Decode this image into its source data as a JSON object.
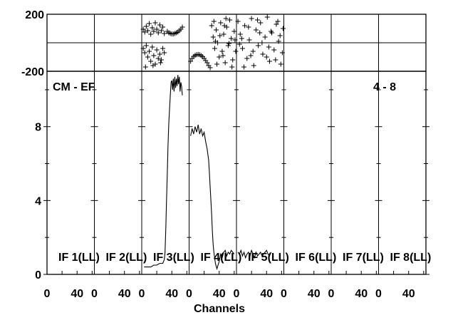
{
  "chart_data": {
    "type": "line",
    "title": "",
    "annotation_left": "CM - EF",
    "annotation_right": "4 - 8",
    "xlabel": "Channels",
    "phase_panel": {
      "ylim": [
        -200,
        200
      ],
      "ytick_labels": [
        "200",
        "-200"
      ]
    },
    "amplitude_panel": {
      "ylim": [
        0,
        11
      ],
      "ytick_labels": [
        "0",
        "4",
        "8"
      ]
    },
    "x_range_per_if": [
      0,
      63
    ],
    "xtick_labels": [
      "0",
      "40"
    ],
    "ifs": [
      {
        "label": "IF 1(LL)",
        "amplitude": [],
        "phase": []
      },
      {
        "label": "IF 2(LL)",
        "amplitude": [],
        "phase": []
      },
      {
        "label": "IF 3(LL)",
        "amplitude": [
          [
            3,
            0.4
          ],
          [
            8,
            0.4
          ],
          [
            12,
            0.4
          ],
          [
            16,
            0.5
          ],
          [
            20,
            0.5
          ],
          [
            24,
            0.6
          ],
          [
            28,
            0.6
          ],
          [
            30,
            0.8
          ],
          [
            31,
            1.2
          ],
          [
            32,
            2.5
          ],
          [
            33,
            4
          ],
          [
            34,
            5.5
          ],
          [
            35,
            7
          ],
          [
            36,
            8.2
          ],
          [
            37,
            9
          ],
          [
            38,
            9.7
          ],
          [
            39,
            10.4
          ],
          [
            40,
            10.5
          ],
          [
            41,
            10
          ],
          [
            42,
            10.6
          ],
          [
            43,
            9.9
          ],
          [
            44,
            10.7
          ],
          [
            45,
            10.1
          ],
          [
            46,
            10.6
          ],
          [
            47,
            10.2
          ],
          [
            48,
            10.8
          ],
          [
            49,
            10.3
          ],
          [
            50,
            10.7
          ],
          [
            51,
            9.9
          ],
          [
            52,
            10.4
          ],
          [
            53,
            10.2
          ],
          [
            54,
            9.7
          ]
        ],
        "phase": [
          [
            2,
            95
          ],
          [
            4,
            75
          ],
          [
            6,
            115
          ],
          [
            8,
            85
          ],
          [
            10,
            135
          ],
          [
            12,
            60
          ],
          [
            14,
            105
          ],
          [
            16,
            80
          ],
          [
            18,
            140
          ],
          [
            20,
            95
          ],
          [
            22,
            70
          ],
          [
            24,
            125
          ],
          [
            26,
            85
          ],
          [
            28,
            110
          ],
          [
            30,
            65
          ],
          [
            2,
            -40
          ],
          [
            4,
            -70
          ],
          [
            6,
            -20
          ],
          [
            8,
            -100
          ],
          [
            10,
            -60
          ],
          [
            12,
            -130
          ],
          [
            14,
            -30
          ],
          [
            16,
            -90
          ],
          [
            18,
            -150
          ],
          [
            20,
            -50
          ],
          [
            22,
            -110
          ],
          [
            24,
            -80
          ],
          [
            26,
            -120
          ],
          [
            28,
            -40
          ],
          [
            30,
            -70
          ],
          [
            5,
            -170
          ],
          [
            15,
            -160
          ],
          [
            25,
            -140
          ],
          [
            34,
            80
          ],
          [
            36,
            70
          ],
          [
            38,
            65
          ],
          [
            40,
            62
          ],
          [
            42,
            62
          ],
          [
            44,
            65
          ],
          [
            46,
            70
          ],
          [
            48,
            75
          ],
          [
            50,
            85
          ],
          [
            52,
            95
          ],
          [
            54,
            110
          ]
        ]
      },
      {
        "label": "IF 4(LL)",
        "amplitude": [
          [
            2,
            7.5
          ],
          [
            4,
            7.9
          ],
          [
            6,
            7.6
          ],
          [
            8,
            8
          ],
          [
            10,
            7.7
          ],
          [
            12,
            8.1
          ],
          [
            14,
            7.6
          ],
          [
            16,
            7.9
          ],
          [
            18,
            7.5
          ],
          [
            20,
            7.7
          ],
          [
            22,
            7.2
          ],
          [
            24,
            6.8
          ],
          [
            26,
            6.2
          ],
          [
            27,
            5.5
          ],
          [
            28,
            4.7
          ],
          [
            29,
            4
          ],
          [
            30,
            3.2
          ],
          [
            31,
            2.3
          ],
          [
            32,
            1.6
          ],
          [
            33,
            1.2
          ],
          [
            35,
            0.6
          ],
          [
            37,
            0.3
          ],
          [
            40,
            0.7
          ],
          [
            42,
            1.1
          ],
          [
            44,
            0.9
          ],
          [
            46,
            1.2
          ],
          [
            48,
            1.3
          ],
          [
            50,
            1
          ],
          [
            52,
            1.2
          ],
          [
            54,
            1.1
          ],
          [
            56,
            1.3
          ],
          [
            58,
            1.2
          ],
          [
            60,
            1.1
          ]
        ],
        "phase": [
          [
            2,
            -130
          ],
          [
            4,
            -110
          ],
          [
            6,
            -96
          ],
          [
            8,
            -88
          ],
          [
            10,
            -84
          ],
          [
            12,
            -82
          ],
          [
            14,
            -84
          ],
          [
            16,
            -90
          ],
          [
            18,
            -98
          ],
          [
            20,
            -110
          ],
          [
            22,
            -125
          ],
          [
            24,
            -140
          ],
          [
            26,
            -160
          ],
          [
            28,
            -175
          ],
          [
            30,
            120
          ],
          [
            32,
            40
          ],
          [
            34,
            -40
          ],
          [
            36,
            90
          ],
          [
            38,
            0
          ],
          [
            40,
            -100
          ],
          [
            42,
            140
          ],
          [
            44,
            -60
          ],
          [
            46,
            60
          ],
          [
            48,
            -140
          ],
          [
            50,
            110
          ],
          [
            52,
            -20
          ],
          [
            54,
            160
          ],
          [
            56,
            30
          ],
          [
            58,
            -120
          ],
          [
            60,
            80
          ],
          [
            62,
            -60
          ],
          [
            33,
            150
          ],
          [
            37,
            -150
          ],
          [
            41,
            50
          ],
          [
            45,
            -90
          ],
          [
            49,
            170
          ],
          [
            53,
            -5
          ],
          [
            57,
            -170
          ],
          [
            61,
            20
          ],
          [
            35,
            10
          ],
          [
            47,
            120
          ]
        ]
      },
      {
        "label": "IF 5(LL)",
        "amplitude": [
          [
            2,
            1.2
          ],
          [
            4,
            1.1
          ],
          [
            6,
            1.3
          ],
          [
            8,
            1
          ],
          [
            10,
            1.2
          ],
          [
            12,
            0.9
          ],
          [
            14,
            1.1
          ],
          [
            16,
            1.2
          ],
          [
            18,
            1
          ],
          [
            20,
            1.3
          ],
          [
            22,
            1.1
          ],
          [
            24,
            0.9
          ],
          [
            26,
            1.2
          ],
          [
            28,
            1
          ],
          [
            30,
            1.1
          ],
          [
            32,
            1.2
          ],
          [
            34,
            1
          ],
          [
            36,
            1.1
          ],
          [
            38,
            1.2
          ],
          [
            40,
            1.3
          ],
          [
            42,
            1.1
          ],
          [
            44,
            1
          ],
          [
            46,
            1.2
          ]
        ],
        "phase": [
          [
            2,
            150
          ],
          [
            5,
            60
          ],
          [
            8,
            -40
          ],
          [
            11,
            120
          ],
          [
            14,
            -110
          ],
          [
            17,
            20
          ],
          [
            20,
            170
          ],
          [
            23,
            -160
          ],
          [
            26,
            90
          ],
          [
            29,
            -20
          ],
          [
            32,
            140
          ],
          [
            35,
            -80
          ],
          [
            38,
            40
          ],
          [
            41,
            180
          ],
          [
            44,
            -130
          ],
          [
            47,
            70
          ],
          [
            50,
            -50
          ],
          [
            53,
            130
          ],
          [
            56,
            10
          ],
          [
            59,
            -150
          ],
          [
            62,
            100
          ],
          [
            4,
            -10
          ],
          [
            10,
            -170
          ],
          [
            16,
            110
          ],
          [
            22,
            -60
          ],
          [
            28,
            160
          ],
          [
            34,
            0
          ],
          [
            40,
            -100
          ],
          [
            46,
            80
          ],
          [
            52,
            -120
          ],
          [
            58,
            50
          ],
          [
            7,
            30
          ],
          [
            19,
            -90
          ],
          [
            31,
            70
          ],
          [
            43,
            -30
          ],
          [
            55,
            150
          ],
          [
            61,
            -70
          ]
        ]
      },
      {
        "label": "IF 6(LL)",
        "amplitude": [],
        "phase": []
      },
      {
        "label": "IF 7(LL)",
        "amplitude": [],
        "phase": []
      },
      {
        "label": "IF 8(LL)",
        "amplitude": [],
        "phase": []
      }
    ]
  }
}
